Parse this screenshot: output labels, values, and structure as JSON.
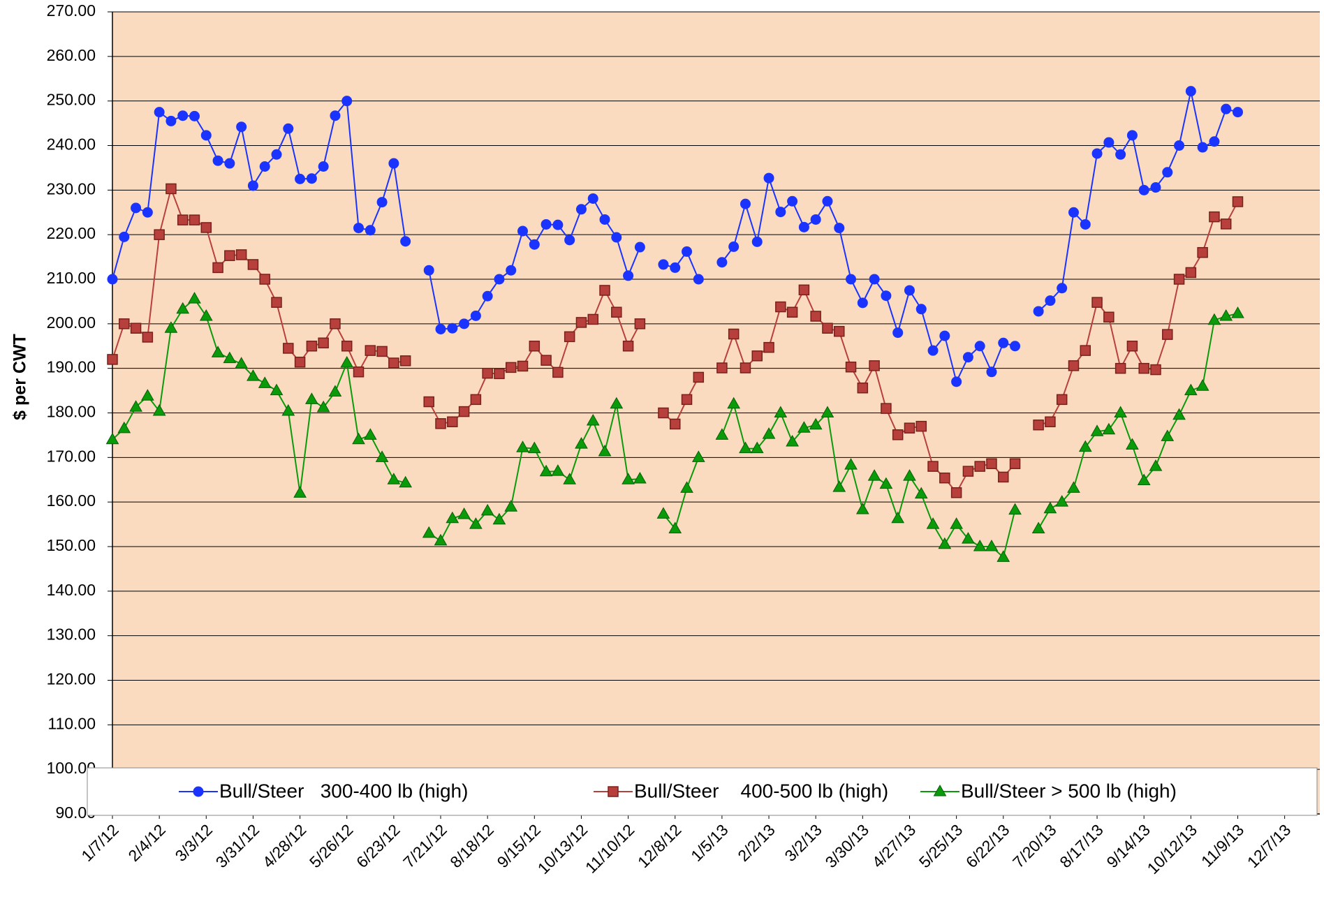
{
  "chart_data": {
    "type": "line",
    "y_label": "$ per CWT",
    "x": [
      "1/7/12",
      "1/14/12",
      "1/21/12",
      "1/28/12",
      "2/4/12",
      "2/11/12",
      "2/18/12",
      "2/25/12",
      "3/3/12",
      "3/10/12",
      "3/17/12",
      "3/24/12",
      "3/31/12",
      "4/7/12",
      "4/14/12",
      "4/21/12",
      "4/28/12",
      "5/5/12",
      "5/12/12",
      "5/19/12",
      "5/26/12",
      "6/2/12",
      "6/9/12",
      "6/16/12",
      "6/23/12",
      "6/30/12",
      "7/7/12",
      "7/14/12",
      "7/21/12",
      "7/28/12",
      "8/4/12",
      "8/11/12",
      "8/18/12",
      "8/25/12",
      "9/1/12",
      "9/8/12",
      "9/15/12",
      "9/22/12",
      "9/29/12",
      "10/6/12",
      "10/13/12",
      "10/20/12",
      "10/27/12",
      "11/3/12",
      "11/10/12",
      "11/17/12",
      "11/24/12",
      "12/1/12",
      "12/8/12",
      "12/15/12",
      "12/22/12",
      "12/29/12",
      "1/5/13",
      "1/12/13",
      "1/19/13",
      "1/26/13",
      "2/2/13",
      "2/9/13",
      "2/16/13",
      "2/23/13",
      "3/2/13",
      "3/9/13",
      "3/16/13",
      "3/23/13",
      "3/30/13",
      "4/6/13",
      "4/13/13",
      "4/20/13",
      "4/27/13",
      "5/4/13",
      "5/11/13",
      "5/18/13",
      "5/25/13",
      "6/1/13",
      "6/8/13",
      "6/15/13",
      "6/22/13",
      "6/29/13",
      "7/6/13",
      "7/13/13",
      "7/20/13",
      "7/27/13",
      "8/3/13",
      "8/10/13",
      "8/17/13",
      "8/24/13",
      "8/31/13",
      "9/7/13",
      "9/14/13",
      "9/21/13",
      "9/28/13",
      "10/5/13",
      "10/12/13",
      "10/19/13",
      "10/26/13",
      "11/2/13",
      "11/9/13"
    ],
    "series": [
      {
        "name": "Bull/Steer   300-400 lb (high)",
        "color": "#1a33ff",
        "marker": "circle",
        "values": [
          210,
          219.5,
          226,
          225,
          247.5,
          245.5,
          246.7,
          246.6,
          242.3,
          236.6,
          236,
          244.2,
          231,
          235.3,
          238,
          243.8,
          232.5,
          232.6,
          235.3,
          246.7,
          250,
          221.5,
          221,
          227.3,
          236,
          218.5,
          null,
          212,
          198.8,
          199,
          200,
          201.8,
          206.2,
          210,
          212,
          220.8,
          217.8,
          222.3,
          222.2,
          218.8,
          225.7,
          228.1,
          223.4,
          219.4,
          210.8,
          217.2,
          null,
          213.3,
          212.6,
          216.2,
          210,
          null,
          213.8,
          217.3,
          226.9,
          218.4,
          232.7,
          225.1,
          227.5,
          221.7,
          223.4,
          227.5,
          221.5,
          210,
          204.7,
          210,
          206.3,
          198,
          207.5,
          203.3,
          194,
          197.3,
          187,
          192.5,
          195,
          189.2,
          195.7,
          195,
          null,
          202.8,
          205.2,
          208,
          225,
          222.3,
          238.2,
          240.7,
          238,
          242.3,
          230,
          230.6,
          234,
          240,
          252.2,
          239.6,
          240.9,
          248.2,
          247.5
        ]
      },
      {
        "name": "Bull/Steer    400-500 lb (high)",
        "color": "#b8403c",
        "marker": "square",
        "values": [
          192,
          200,
          199,
          197,
          220,
          230.3,
          223.3,
          223.3,
          221.6,
          212.6,
          215.3,
          215.5,
          213.3,
          210,
          204.8,
          194.5,
          191.4,
          195,
          195.7,
          200,
          195,
          189.2,
          194,
          193.8,
          191.2,
          191.7,
          null,
          182.5,
          177.6,
          178,
          180.3,
          183,
          188.9,
          188.8,
          190.2,
          190.5,
          195,
          191.8,
          189.1,
          197.1,
          200.3,
          201,
          207.5,
          202.6,
          195,
          200,
          null,
          180,
          177.5,
          183,
          188,
          null,
          190.1,
          197.7,
          190.1,
          192.8,
          194.7,
          203.8,
          202.6,
          207.6,
          201.7,
          199,
          198.3,
          190.3,
          185.6,
          190.6,
          181,
          175.1,
          176.6,
          177,
          168,
          165.4,
          162.1,
          166.9,
          168,
          168.6,
          165.6,
          168.6,
          null,
          177.3,
          178,
          183,
          190.6,
          194,
          204.8,
          201.5,
          190,
          195,
          190,
          189.7,
          197.6,
          210,
          211.5,
          216,
          224,
          222.4,
          227.4
        ]
      },
      {
        "name": "Bull/Steer > 500 lb (high)",
        "color": "#0a9a0a",
        "marker": "triangle",
        "values": [
          174,
          176.5,
          181.3,
          183.8,
          180.4,
          199,
          203.3,
          205.6,
          201.7,
          193.5,
          192.2,
          191,
          188.2,
          186.6,
          185,
          180.4,
          162,
          183,
          181.2,
          184.7,
          191.2,
          174,
          175,
          170,
          165,
          164.3,
          null,
          153,
          151.3,
          156.3,
          157.2,
          155,
          158,
          156,
          158.9,
          172.2,
          172,
          166.8,
          166.9,
          165,
          173,
          178.2,
          171.3,
          182,
          165,
          165.2,
          null,
          157.3,
          154,
          163.1,
          170,
          null,
          175,
          182,
          172,
          172,
          175.2,
          180,
          173.5,
          176.6,
          177.3,
          180,
          163.3,
          168.3,
          158.3,
          165.8,
          164,
          156.3,
          165.8,
          161.8,
          155,
          150.5,
          155,
          151.7,
          150,
          150,
          147.6,
          158.2,
          null,
          154,
          158.5,
          160,
          163.1,
          172.3,
          175.8,
          176.2,
          180,
          172.8,
          164.8,
          168,
          174.7,
          179.5,
          185,
          186,
          200.8,
          201.7,
          202.3
        ]
      }
    ],
    "xlim": [
      "1/7/12",
      "12/28/13"
    ],
    "xticks": [
      "1/7/12",
      "2/4/12",
      "3/3/12",
      "3/31/12",
      "4/28/12",
      "5/26/12",
      "6/23/12",
      "7/21/12",
      "8/18/12",
      "9/15/12",
      "10/13/12",
      "11/10/12",
      "12/8/12",
      "1/5/13",
      "2/2/13",
      "3/2/13",
      "3/30/13",
      "4/27/13",
      "5/25/13",
      "6/22/13",
      "7/20/13",
      "8/17/13",
      "9/14/13",
      "10/12/13",
      "11/9/13",
      "12/7/13"
    ],
    "ylim": [
      90,
      270
    ],
    "yticks": [
      {
        "value": 90,
        "label": "90.00"
      },
      {
        "value": 100,
        "label": "100.00"
      },
      {
        "value": 110,
        "label": "110.00"
      },
      {
        "value": 120,
        "label": "120.00"
      },
      {
        "value": 130,
        "label": "130.00"
      },
      {
        "value": 140,
        "label": "140.00"
      },
      {
        "value": 150,
        "label": "150.00"
      },
      {
        "value": 160,
        "label": "160.00"
      },
      {
        "value": 170,
        "label": "170.00"
      },
      {
        "value": 180,
        "label": "180.00"
      },
      {
        "value": 190,
        "label": "190.00"
      },
      {
        "value": 200,
        "label": "200.00"
      },
      {
        "value": 210,
        "label": "210.00"
      },
      {
        "value": 220,
        "label": "220.00"
      },
      {
        "value": 230,
        "label": "230.00"
      },
      {
        "value": 240,
        "label": "240.00"
      },
      {
        "value": 250,
        "label": "250.00"
      },
      {
        "value": 260,
        "label": "260.00"
      },
      {
        "value": 270,
        "label": "270.00"
      }
    ],
    "grid": true,
    "plot_background": "#fbdbbf",
    "legend": "bottom"
  }
}
